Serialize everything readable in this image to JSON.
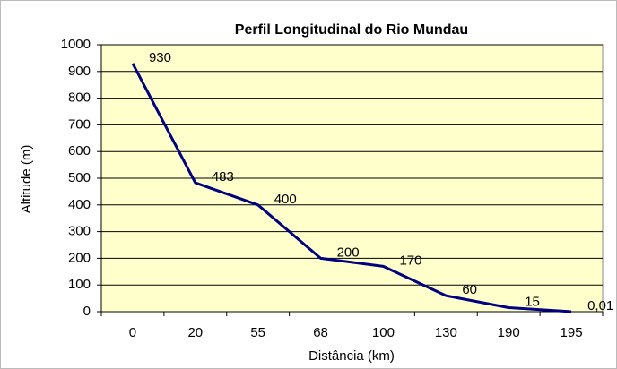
{
  "chart_data": {
    "type": "line",
    "title": "Perfil Longitudinal do Rio Mundau",
    "x_label": "Distância (km)",
    "y_label": "Altitude (m)",
    "categories": [
      0,
      20,
      55,
      68,
      100,
      130,
      190,
      195
    ],
    "values": [
      930,
      483,
      400,
      200,
      170,
      60,
      15,
      0.01
    ],
    "value_labels": [
      "930",
      "483",
      "400",
      "200",
      "170",
      "60",
      "15",
      "0,01"
    ],
    "color": "#000080",
    "ylim": [
      0,
      1000
    ],
    "yticks": [
      0,
      100,
      200,
      300,
      400,
      500,
      600,
      700,
      800,
      900,
      1000
    ],
    "grid": true
  }
}
